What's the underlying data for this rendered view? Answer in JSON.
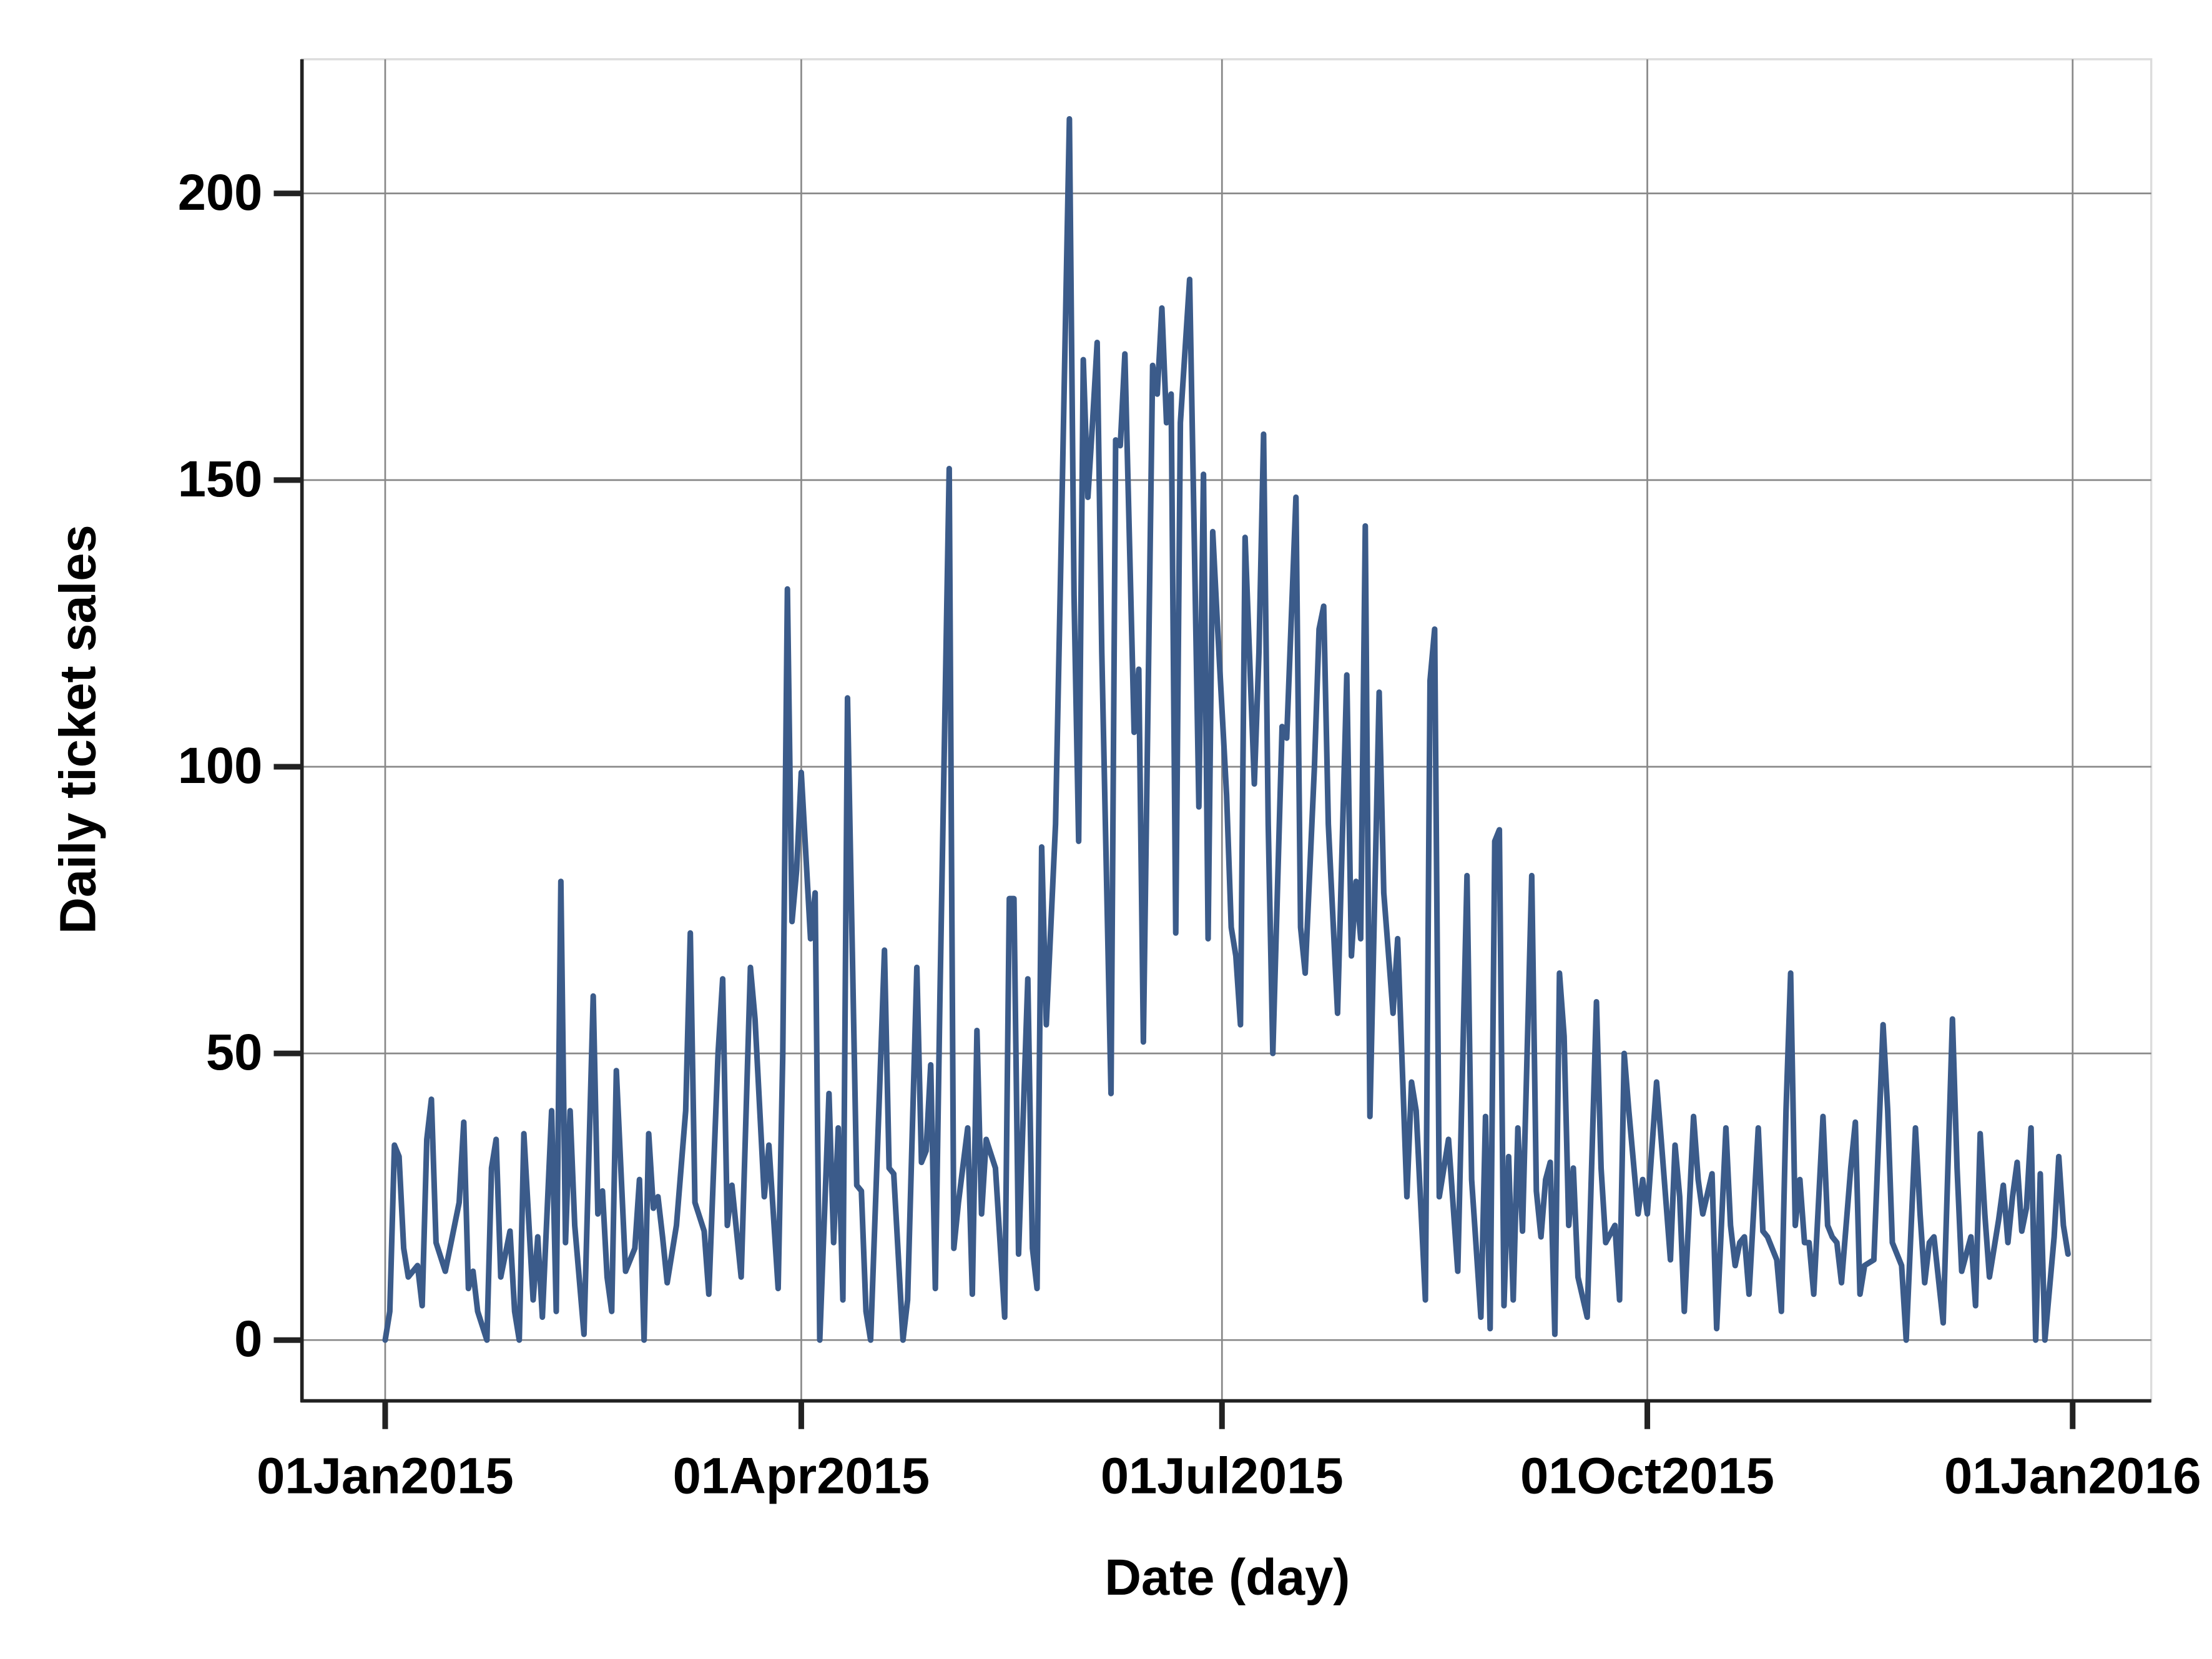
{
  "chart_data": {
    "type": "line",
    "xlabel": "Date (day)",
    "ylabel": "Daily ticket sales",
    "color": "#3b5b8a",
    "grid": true,
    "x": [
      "2015-01-01",
      "2015-01-02",
      "2015-01-03",
      "2015-01-04",
      "2015-01-05",
      "2015-01-06",
      "2015-01-08",
      "2015-01-09",
      "2015-01-10",
      "2015-01-11",
      "2015-01-12",
      "2015-01-14",
      "2015-01-17",
      "2015-01-18",
      "2015-01-19",
      "2015-01-20",
      "2015-01-21",
      "2015-01-23",
      "2015-01-24",
      "2015-01-25",
      "2015-01-26",
      "2015-01-28",
      "2015-01-29",
      "2015-01-30",
      "2015-01-31",
      "2015-02-02",
      "2015-02-03",
      "2015-02-04",
      "2015-02-06",
      "2015-02-07",
      "2015-02-08",
      "2015-02-09",
      "2015-02-10",
      "2015-02-11",
      "2015-02-13",
      "2015-02-15",
      "2015-02-16",
      "2015-02-17",
      "2015-02-18",
      "2015-02-19",
      "2015-02-20",
      "2015-02-22",
      "2015-02-24",
      "2015-02-25",
      "2015-02-26",
      "2015-02-27",
      "2015-02-28",
      "2015-03-01",
      "2015-03-02",
      "2015-03-03",
      "2015-03-05",
      "2015-03-07",
      "2015-03-08",
      "2015-03-09",
      "2015-03-11",
      "2015-03-12",
      "2015-03-14",
      "2015-03-15",
      "2015-03-16",
      "2015-03-17",
      "2015-03-19",
      "2015-03-21",
      "2015-03-22",
      "2015-03-24",
      "2015-03-25",
      "2015-03-27",
      "2015-03-28",
      "2015-03-29",
      "2015-03-30",
      "2015-03-31",
      "2015-04-01",
      "2015-04-03",
      "2015-04-04",
      "2015-04-05",
      "2015-04-07",
      "2015-04-08",
      "2015-04-09",
      "2015-04-10",
      "2015-04-11",
      "2015-04-13",
      "2015-04-14",
      "2015-04-15",
      "2015-04-16",
      "2015-04-18",
      "2015-04-19",
      "2015-04-20",
      "2015-04-21",
      "2015-04-23",
      "2015-04-24",
      "2015-04-26",
      "2015-04-27",
      "2015-04-28",
      "2015-04-29",
      "2015-04-30",
      "2015-05-01",
      "2015-05-03",
      "2015-05-04",
      "2015-05-05",
      "2015-05-07",
      "2015-05-08",
      "2015-05-09",
      "2015-05-10",
      "2015-05-11",
      "2015-05-13",
      "2015-05-15",
      "2015-05-16",
      "2015-05-17",
      "2015-05-18",
      "2015-05-20",
      "2015-05-21",
      "2015-05-22",
      "2015-05-23",
      "2015-05-24",
      "2015-05-26",
      "2015-05-27",
      "2015-05-29",
      "2015-05-30",
      "2015-05-31",
      "2015-06-01",
      "2015-06-02",
      "2015-06-03",
      "2015-06-04",
      "2015-06-05",
      "2015-06-07",
      "2015-06-08",
      "2015-06-09",
      "2015-06-10",
      "2015-06-12",
      "2015-06-13",
      "2015-06-14",
      "2015-06-16",
      "2015-06-17",
      "2015-06-18",
      "2015-06-19",
      "2015-06-20",
      "2015-06-21",
      "2015-06-22",
      "2015-06-24",
      "2015-06-25",
      "2015-06-26",
      "2015-06-27",
      "2015-06-28",
      "2015-06-29",
      "2015-06-30",
      "2015-07-02",
      "2015-07-03",
      "2015-07-04",
      "2015-07-05",
      "2015-07-06",
      "2015-07-08",
      "2015-07-09",
      "2015-07-10",
      "2015-07-11",
      "2015-07-12",
      "2015-07-14",
      "2015-07-15",
      "2015-07-17",
      "2015-07-18",
      "2015-07-19",
      "2015-07-21",
      "2015-07-22",
      "2015-07-23",
      "2015-07-24",
      "2015-07-26",
      "2015-07-28",
      "2015-07-29",
      "2015-07-30",
      "2015-07-31",
      "2015-08-01",
      "2015-08-02",
      "2015-08-04",
      "2015-08-05",
      "2015-08-07",
      "2015-08-08",
      "2015-08-10",
      "2015-08-11",
      "2015-08-12",
      "2015-08-14",
      "2015-08-15",
      "2015-08-16",
      "2015-08-17",
      "2015-08-19",
      "2015-08-21",
      "2015-08-23",
      "2015-08-24",
      "2015-08-26",
      "2015-08-27",
      "2015-08-28",
      "2015-08-29",
      "2015-08-30",
      "2015-08-31",
      "2015-09-01",
      "2015-09-02",
      "2015-09-03",
      "2015-09-04",
      "2015-09-06",
      "2015-09-07",
      "2015-09-08",
      "2015-09-09",
      "2015-09-10",
      "2015-09-11",
      "2015-09-12",
      "2015-09-13",
      "2015-09-14",
      "2015-09-15",
      "2015-09-16",
      "2015-09-18",
      "2015-09-20",
      "2015-09-21",
      "2015-09-22",
      "2015-09-24",
      "2015-09-25",
      "2015-09-26",
      "2015-09-27",
      "2015-09-29",
      "2015-09-30",
      "2015-10-01",
      "2015-10-03",
      "2015-10-04",
      "2015-10-06",
      "2015-10-07",
      "2015-10-08",
      "2015-10-09",
      "2015-10-11",
      "2015-10-12",
      "2015-10-13",
      "2015-10-15",
      "2015-10-16",
      "2015-10-18",
      "2015-10-19",
      "2015-10-20",
      "2015-10-21",
      "2015-10-22",
      "2015-10-23",
      "2015-10-25",
      "2015-10-26",
      "2015-10-27",
      "2015-10-29",
      "2015-10-30",
      "2015-10-31",
      "2015-11-01",
      "2015-11-02",
      "2015-11-03",
      "2015-11-04",
      "2015-11-05",
      "2015-11-06",
      "2015-11-08",
      "2015-11-09",
      "2015-11-10",
      "2015-11-11",
      "2015-11-12",
      "2015-11-14",
      "2015-11-15",
      "2015-11-16",
      "2015-11-17",
      "2015-11-19",
      "2015-11-21",
      "2015-11-22",
      "2015-11-23",
      "2015-11-25",
      "2015-11-26",
      "2015-11-28",
      "2015-11-29",
      "2015-11-30",
      "2015-12-01",
      "2015-12-02",
      "2015-12-04",
      "2015-12-06",
      "2015-12-07",
      "2015-12-08",
      "2015-12-10",
      "2015-12-11",
      "2015-12-12",
      "2015-12-13",
      "2015-12-14",
      "2015-12-16",
      "2015-12-17",
      "2015-12-18",
      "2015-12-19",
      "2015-12-20",
      "2015-12-21",
      "2015-12-22",
      "2015-12-23",
      "2015-12-24",
      "2015-12-25",
      "2015-12-26",
      "2015-12-28",
      "2015-12-29",
      "2015-12-30",
      "2015-12-31"
    ],
    "values": [
      0,
      5,
      34,
      32,
      16,
      11,
      13,
      6,
      35,
      42,
      17,
      12,
      24,
      38,
      9,
      12,
      5,
      0,
      30,
      35,
      11,
      19,
      5,
      0,
      36,
      7,
      18,
      4,
      40,
      5,
      80,
      17,
      40,
      20,
      1,
      60,
      22,
      26,
      11,
      5,
      47,
      12,
      16,
      28,
      0,
      36,
      23,
      25,
      18,
      10,
      20,
      40,
      71,
      24,
      19,
      8,
      50,
      63,
      20,
      27,
      11,
      65,
      56,
      25,
      34,
      9,
      50,
      131,
      73,
      82,
      99,
      70,
      78,
      0,
      43,
      17,
      37,
      7,
      112,
      27,
      26,
      5,
      0,
      45,
      68,
      30,
      29,
      0,
      7,
      65,
      31,
      33,
      48,
      9,
      60,
      152,
      16,
      24,
      37,
      8,
      54,
      22,
      35,
      30,
      4,
      77,
      77,
      15,
      63,
      16,
      9,
      86,
      55,
      90,
      130,
      213,
      130,
      87,
      171,
      147,
      160,
      174,
      120,
      43,
      157,
      156,
      172,
      106,
      117,
      52,
      170,
      165,
      180,
      160,
      165,
      71,
      160,
      185,
      140,
      93,
      151,
      70,
      141,
      125,
      95,
      72,
      67,
      55,
      140,
      97,
      120,
      158,
      90,
      50,
      107,
      105,
      147,
      72,
      64,
      100,
      124,
      128,
      90,
      57,
      116,
      67,
      80,
      70,
      142,
      39,
      113,
      78,
      57,
      70,
      25,
      45,
      40,
      7,
      115,
      124,
      25,
      35,
      12,
      81,
      28,
      4,
      39,
      2,
      87,
      89,
      6,
      32,
      7,
      37,
      19,
      81,
      26,
      18,
      28,
      31,
      1,
      64,
      53,
      20,
      30,
      11,
      4,
      59,
      30,
      17,
      20,
      7,
      50,
      40,
      22,
      28,
      22,
      45,
      35,
      14,
      34,
      25,
      5,
      39,
      28,
      22,
      29,
      2,
      37,
      20,
      13,
      17,
      18,
      8,
      37,
      19,
      18,
      14,
      5,
      40,
      64,
      20,
      28,
      17,
      17,
      8,
      39,
      20,
      18,
      17,
      10,
      30,
      38,
      8,
      13,
      14,
      55,
      40,
      17,
      13,
      0,
      37,
      22,
      10,
      17,
      18,
      3,
      56,
      30,
      12,
      18,
      6,
      36,
      22,
      11,
      21,
      27,
      17,
      25,
      31,
      19,
      23,
      37,
      0,
      29,
      0,
      18,
      32,
      20,
      15
    ],
    "xlim": [
      "2014-12-14",
      "2016-01-18"
    ],
    "xticks": [
      {
        "value": "2015-01-01",
        "label": "01Jan2015"
      },
      {
        "value": "2015-04-01",
        "label": "01Apr2015"
      },
      {
        "value": "2015-07-01",
        "label": "01Jul2015"
      },
      {
        "value": "2015-10-01",
        "label": "01Oct2015"
      },
      {
        "value": "2016-01-01",
        "label": "01Jan2016"
      }
    ],
    "ylim": [
      -10.6,
      223.4
    ],
    "yticks": [
      0,
      50,
      100,
      150,
      200
    ]
  }
}
